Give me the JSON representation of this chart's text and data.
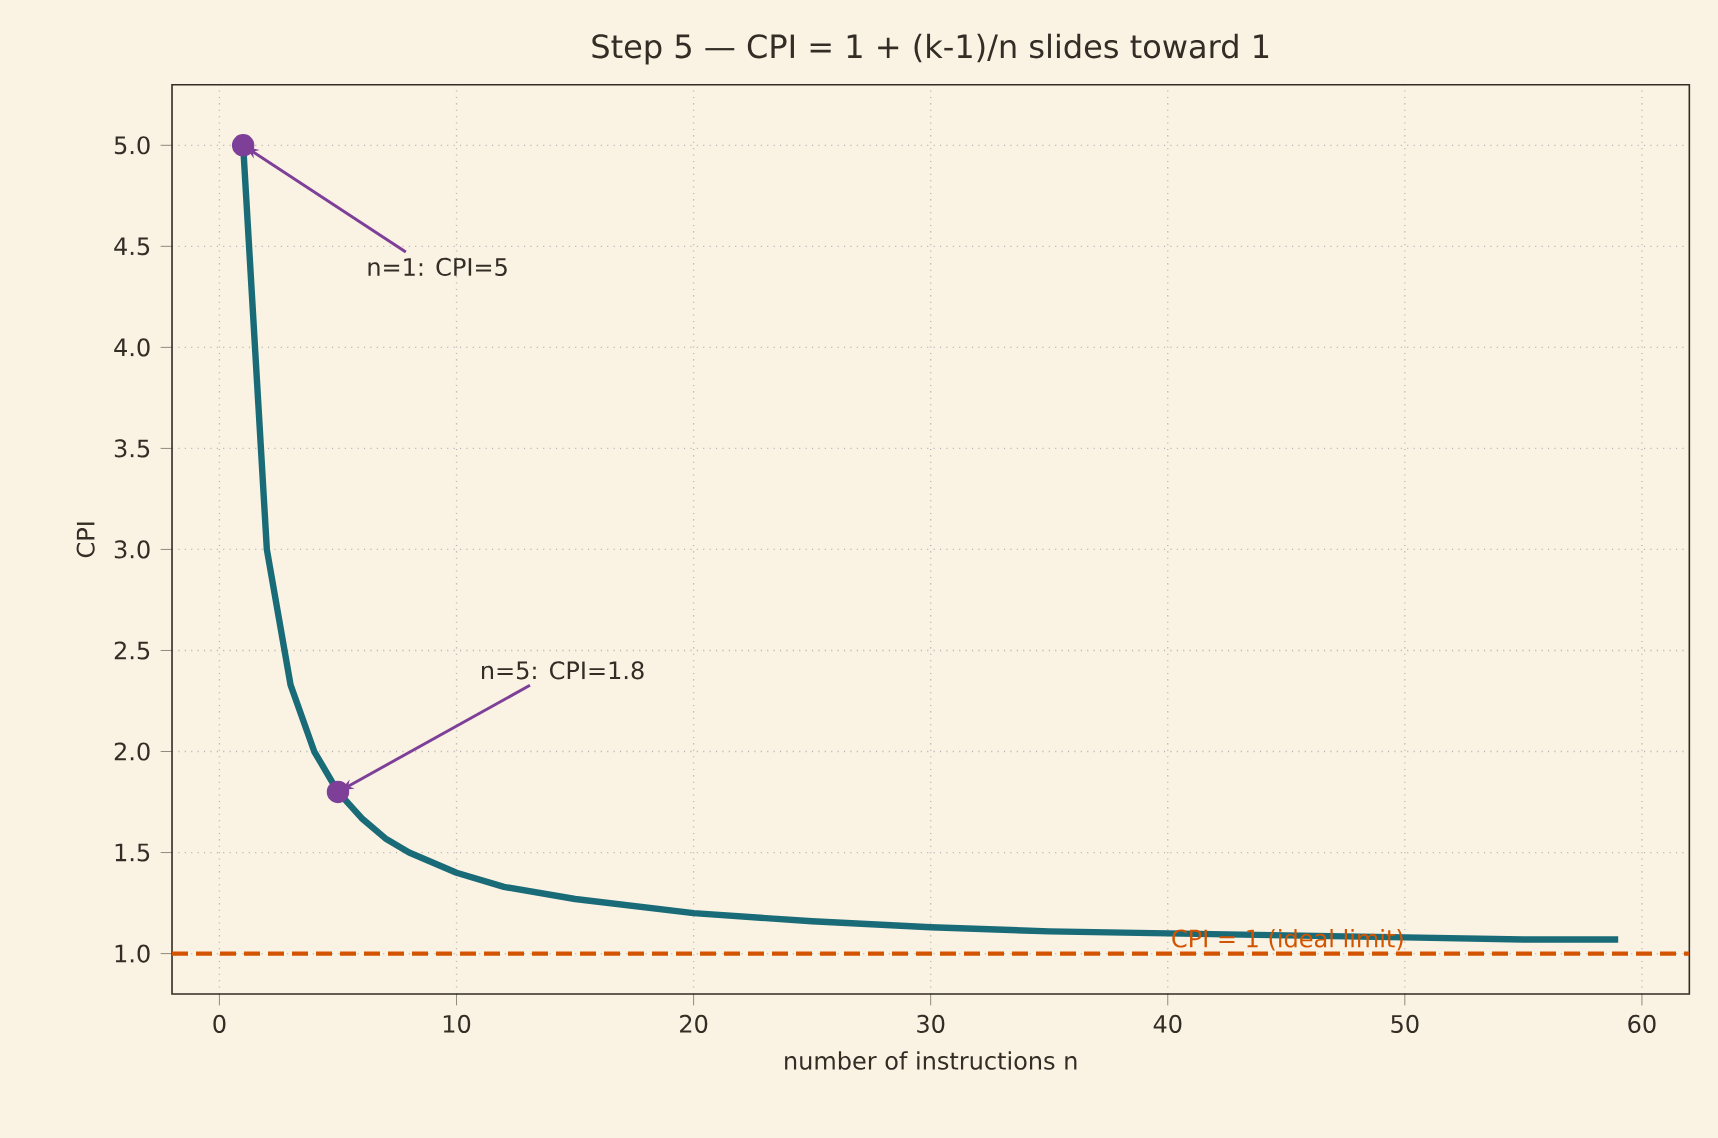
{
  "chart_data": {
    "type": "line",
    "title": "Step 5 — CPI = 1 + (k-1)/n slides toward 1",
    "xlabel": "number of instructions n",
    "ylabel": "CPI",
    "series": [
      {
        "type": "line",
        "color": "#1a6b78",
        "x": [
          1,
          2,
          3,
          4,
          5,
          6,
          7,
          8,
          10,
          12,
          15,
          20,
          25,
          30,
          35,
          40,
          45,
          50,
          55,
          59
        ],
        "values": [
          5,
          3,
          2.33,
          2,
          1.8,
          1.67,
          1.57,
          1.5,
          1.4,
          1.33,
          1.27,
          1.2,
          1.16,
          1.13,
          1.11,
          1.1,
          1.09,
          1.08,
          1.07,
          1.07
        ]
      },
      {
        "type": "scatter",
        "color": "#7d3f98",
        "x": [
          1,
          5
        ],
        "values": [
          5,
          1.8
        ]
      }
    ],
    "annotations": [
      {
        "text": "n=1: CPI=5",
        "x": 1,
        "y": 5
      },
      {
        "text": "n=5: CPI=1.8",
        "x": 5,
        "y": 1.8
      }
    ],
    "ref_lines": [
      {
        "axis": "y",
        "value": 1,
        "label": "CPI = 1 (ideal limit)",
        "color": "#d35400",
        "line_style": "dashed"
      }
    ],
    "xlim": [
      -2,
      62
    ],
    "ylim": [
      0.8,
      5.3
    ],
    "xticks": [
      0,
      10,
      20,
      30,
      40,
      50,
      60
    ],
    "yticks": [
      {
        "value": 1,
        "label": "1.0"
      },
      {
        "value": 1.5,
        "label": "1.5"
      },
      {
        "value": 2,
        "label": "2.0"
      },
      {
        "value": 2.5,
        "label": "2.5"
      },
      {
        "value": 3,
        "label": "3.0"
      },
      {
        "value": 3.5,
        "label": "3.5"
      },
      {
        "value": 4,
        "label": "4.0"
      },
      {
        "value": 4.5,
        "label": "4.5"
      },
      {
        "value": 5,
        "label": "5.0"
      }
    ],
    "grid": true
  }
}
